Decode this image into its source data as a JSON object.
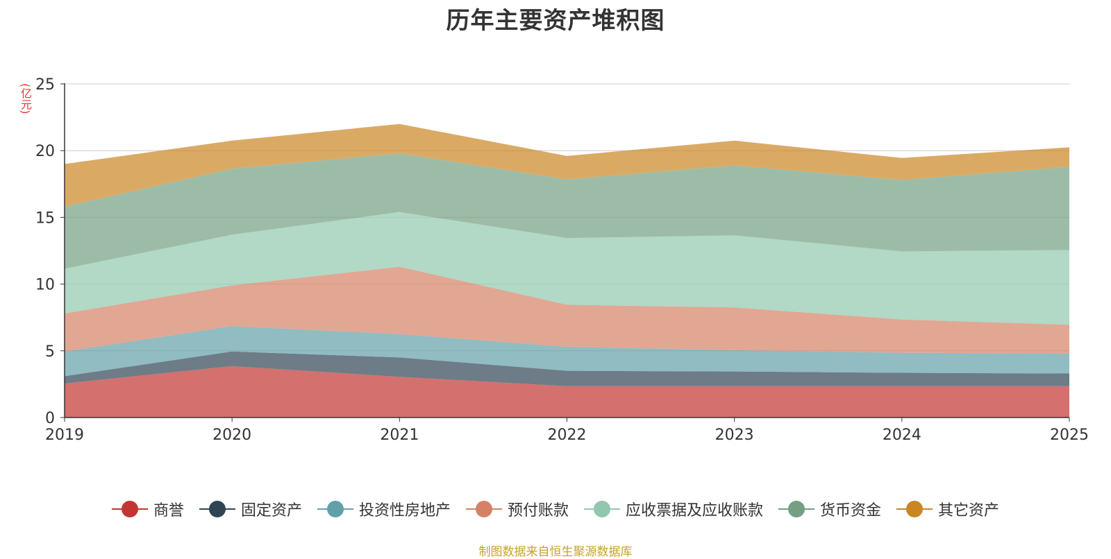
{
  "title": "历年主要资产堆积图",
  "unit_label": "(亿元)",
  "source_note": "制图数据来自恒生聚源数据库",
  "chart_data": {
    "type": "area",
    "stacked": true,
    "title": "历年主要资产堆积图",
    "xlabel": "",
    "ylabel": "(亿元)",
    "x": [
      "2019",
      "2020",
      "2021",
      "2022",
      "2023",
      "2024",
      "2025"
    ],
    "ylim": [
      0,
      25
    ],
    "yticks": [
      0,
      5,
      10,
      15,
      20,
      25
    ],
    "grid": true,
    "legend_position": "bottom",
    "series": [
      {
        "name": "商誉",
        "color": "#c23531",
        "values": [
          2.55,
          3.85,
          3.05,
          2.35,
          2.35,
          2.35,
          2.35
        ]
      },
      {
        "name": "固定资产",
        "color": "#2f4554",
        "values": [
          0.55,
          1.1,
          1.45,
          1.15,
          1.1,
          1.0,
          0.95
        ]
      },
      {
        "name": "投资性房地产",
        "color": "#61a0a8",
        "values": [
          1.85,
          1.9,
          1.75,
          1.8,
          1.6,
          1.5,
          1.5
        ]
      },
      {
        "name": "预付账款",
        "color": "#d48265",
        "values": [
          2.85,
          3.05,
          5.05,
          3.15,
          3.2,
          2.5,
          2.15
        ]
      },
      {
        "name": "应收票据及应收账款",
        "color": "#91c7ae",
        "values": [
          3.35,
          3.8,
          4.1,
          5.0,
          5.4,
          5.1,
          5.6
        ]
      },
      {
        "name": "货币资金",
        "color": "#749f83",
        "values": [
          4.65,
          4.95,
          4.4,
          4.4,
          5.25,
          5.35,
          6.25
        ]
      },
      {
        "name": "其它资产",
        "color": "#ca8622",
        "values": [
          3.2,
          2.1,
          2.2,
          1.75,
          1.85,
          1.65,
          1.45
        ]
      }
    ]
  }
}
